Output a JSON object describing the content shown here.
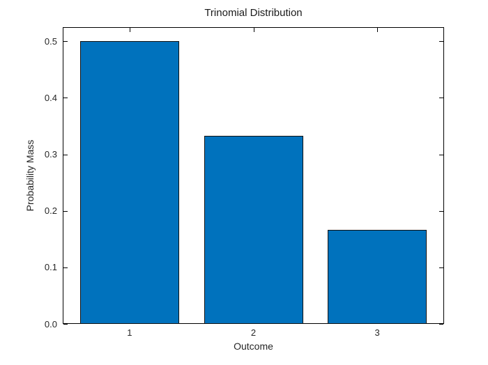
{
  "chart_data": {
    "type": "bar",
    "title": "Trinomial Distribution",
    "xlabel": "Outcome",
    "ylabel": "Probability Mass",
    "categories": [
      "1",
      "2",
      "3"
    ],
    "values": [
      0.5,
      0.3333,
      0.1667
    ],
    "ylim": [
      0,
      0.525
    ],
    "yticks": [
      0,
      0.1,
      0.2,
      0.3,
      0.4,
      0.5
    ],
    "ytick_labels": [
      "0.0",
      "0.1",
      "0.2",
      "0.3",
      "0.4",
      "0.5"
    ],
    "xlim": [
      0.46,
      3.54
    ],
    "bar_rel_width": 0.8,
    "grid": false,
    "legend_position": "none",
    "tick_direction": "in",
    "box": true,
    "bar_color": "#0072BD",
    "bar_edge_color": "#111111",
    "axis_color": "#000000",
    "text_color": "#262626",
    "background": "#FFFFFF"
  }
}
